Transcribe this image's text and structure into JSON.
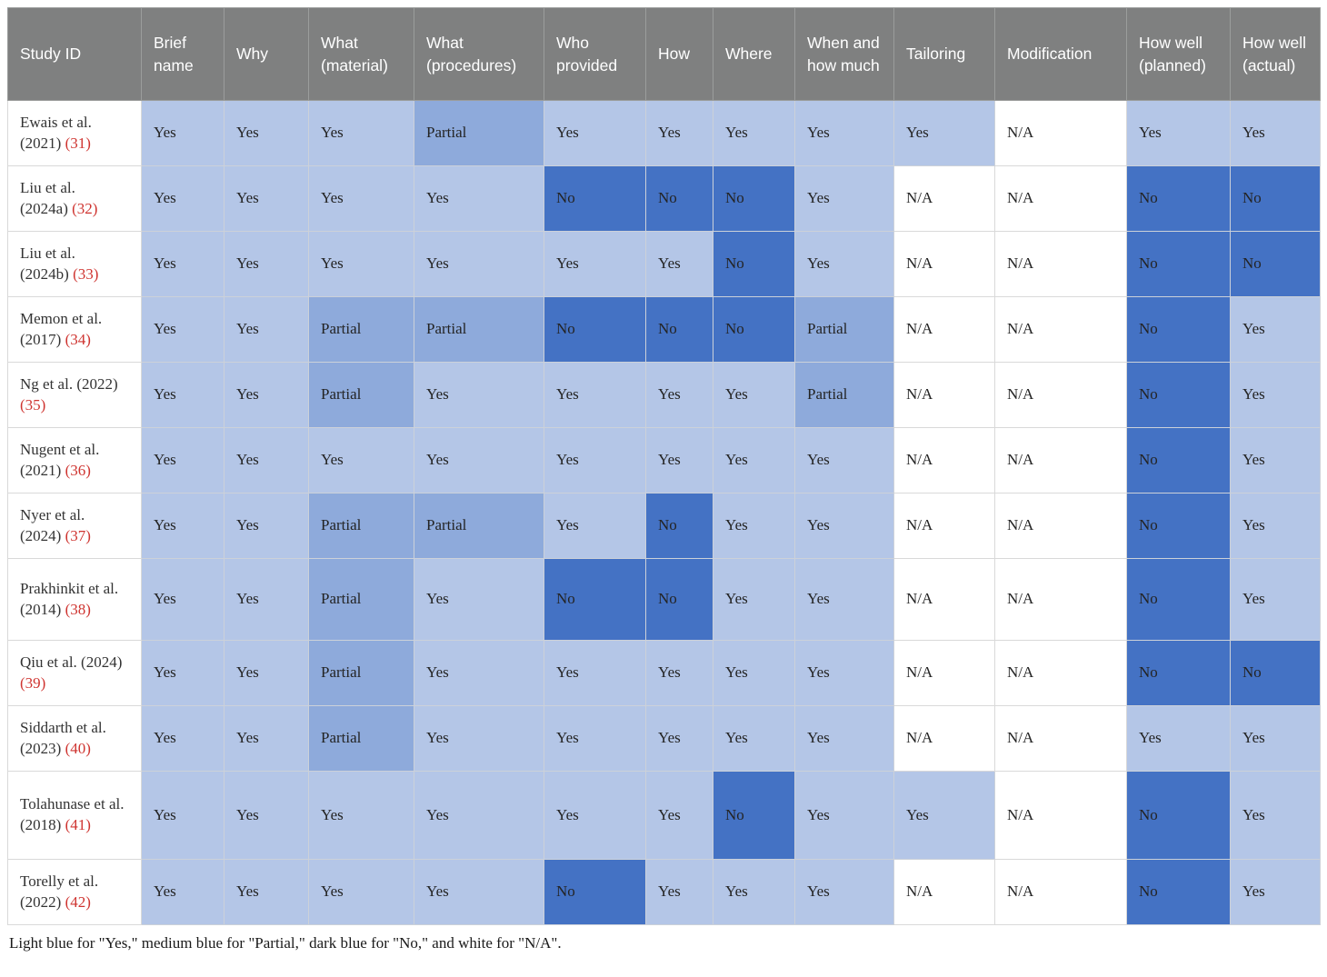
{
  "table": {
    "headers": [
      "Study ID",
      "Brief name",
      "Why",
      "What (material)",
      "What (procedures)",
      "Who provided",
      "How",
      "Where",
      "When and how much",
      "Tailoring",
      "Modification",
      "How well (planned)",
      "How well (actual)"
    ],
    "rows": [
      {
        "study": "Ewais et al. (2021)",
        "citation": "31",
        "size": "normal",
        "values": [
          "Yes",
          "Yes",
          "Yes",
          "Partial",
          "Yes",
          "Yes",
          "Yes",
          "Yes",
          "Yes",
          "N/A",
          "Yes",
          "Yes"
        ]
      },
      {
        "study": "Liu et al. (2024a)",
        "citation": "32",
        "size": "normal",
        "values": [
          "Yes",
          "Yes",
          "Yes",
          "Yes",
          "No",
          "No",
          "No",
          "Yes",
          "N/A",
          "N/A",
          "No",
          "No"
        ]
      },
      {
        "study": "Liu et al. (2024b)",
        "citation": "33",
        "size": "normal",
        "values": [
          "Yes",
          "Yes",
          "Yes",
          "Yes",
          "Yes",
          "Yes",
          "No",
          "Yes",
          "N/A",
          "N/A",
          "No",
          "No"
        ]
      },
      {
        "study": "Memon et al. (2017)",
        "citation": "34",
        "size": "normal",
        "values": [
          "Yes",
          "Yes",
          "Partial",
          "Partial",
          "No",
          "No",
          "No",
          "Partial",
          "N/A",
          "N/A",
          "No",
          "Yes"
        ]
      },
      {
        "study": "Ng et al. (2022)",
        "citation": "35",
        "size": "normal",
        "values": [
          "Yes",
          "Yes",
          "Partial",
          "Yes",
          "Yes",
          "Yes",
          "Yes",
          "Partial",
          "N/A",
          "N/A",
          "No",
          "Yes"
        ]
      },
      {
        "study": "Nugent et al. (2021)",
        "citation": "36",
        "size": "normal",
        "values": [
          "Yes",
          "Yes",
          "Yes",
          "Yes",
          "Yes",
          "Yes",
          "Yes",
          "Yes",
          "N/A",
          "N/A",
          "No",
          "Yes"
        ]
      },
      {
        "study": "Nyer et al. (2024)",
        "citation": "37",
        "size": "normal",
        "values": [
          "Yes",
          "Yes",
          "Partial",
          "Partial",
          "Yes",
          "No",
          "Yes",
          "Yes",
          "N/A",
          "N/A",
          "No",
          "Yes"
        ]
      },
      {
        "study": "Prakhinkit et al. (2014)",
        "citation": "38",
        "size": "tall-3",
        "values": [
          "Yes",
          "Yes",
          "Partial",
          "Yes",
          "No",
          "No",
          "Yes",
          "Yes",
          "N/A",
          "N/A",
          "No",
          "Yes"
        ]
      },
      {
        "study": "Qiu et al. (2024)",
        "citation": "39",
        "size": "normal",
        "values": [
          "Yes",
          "Yes",
          "Partial",
          "Yes",
          "Yes",
          "Yes",
          "Yes",
          "Yes",
          "N/A",
          "N/A",
          "No",
          "No"
        ]
      },
      {
        "study": "Siddarth et al. (2023)",
        "citation": "40",
        "size": "normal",
        "values": [
          "Yes",
          "Yes",
          "Partial",
          "Yes",
          "Yes",
          "Yes",
          "Yes",
          "Yes",
          "N/A",
          "N/A",
          "Yes",
          "Yes"
        ]
      },
      {
        "study": "Tolahunase et al. (2018)",
        "citation": "41",
        "size": "tall-4",
        "values": [
          "Yes",
          "Yes",
          "Yes",
          "Yes",
          "Yes",
          "Yes",
          "No",
          "Yes",
          "Yes",
          "N/A",
          "No",
          "Yes"
        ]
      },
      {
        "study": "Torelly et al. (2022)",
        "citation": "42",
        "size": "normal",
        "values": [
          "Yes",
          "Yes",
          "Yes",
          "Yes",
          "No",
          "Yes",
          "Yes",
          "Yes",
          "N/A",
          "N/A",
          "No",
          "Yes"
        ]
      }
    ]
  },
  "legend": {
    "cell_colors": {
      "Yes": "#b4c6e7",
      "Partial": "#8eaadb",
      "No": "#4472c4",
      "N/A": "#ffffff"
    },
    "header_background": "#7f8080",
    "citation_color": "#cf3430"
  },
  "footnote": "Light blue for \"Yes,\" medium blue for \"Partial,\" dark blue for \"No,\" and white for \"N/A\"."
}
